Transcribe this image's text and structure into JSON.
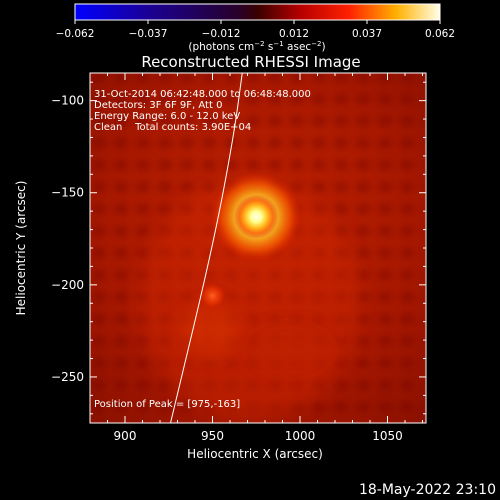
{
  "colorbar": {
    "min": -0.062,
    "max": 0.062,
    "tick_labels": [
      "−0.062",
      "−0.037",
      "−0.012",
      "0.012",
      "0.037",
      "0.062"
    ],
    "units_prefix": "(photons cm",
    "units_exp1": "−2",
    "units_mid": " s",
    "units_exp2": "−1",
    "units_mid2": " asec",
    "units_exp3": "−2",
    "units_suffix": ")"
  },
  "image": {
    "title": "Reconstructed RHESSI Image",
    "xlabel": "Heliocentric X (arcsec)",
    "ylabel": "Heliocentric Y (arcsec)",
    "x_range": [
      880,
      1072
    ],
    "y_range": [
      -275,
      -85
    ],
    "x_ticks": [
      900,
      950,
      1000,
      1050
    ],
    "y_ticks": [
      -100,
      -150,
      -200,
      -250
    ],
    "x_tick_labels": [
      "900",
      "950",
      "1000",
      "1050"
    ],
    "y_tick_labels": [
      "−100",
      "−150",
      "−200",
      "−250"
    ],
    "annotations": [
      "31-Oct-2014 06:42:48.000 to 06:48:48.000",
      "Detectors: 3F 6F 9F, Att 0",
      "Energy Range: 6.0 - 12.0 keV",
      "Clean    Total counts: 3.90E+04"
    ],
    "peak_label": "Position of Peak = [975,-163]",
    "peak_position": [
      975,
      -163
    ],
    "secondary_source": [
      950,
      -206
    ],
    "limb_points": [
      [
        926,
        -275
      ],
      [
        950,
        -180
      ],
      [
        962,
        -120
      ],
      [
        967,
        -85
      ]
    ]
  },
  "timestamp": "18-May-2022 23:10"
}
